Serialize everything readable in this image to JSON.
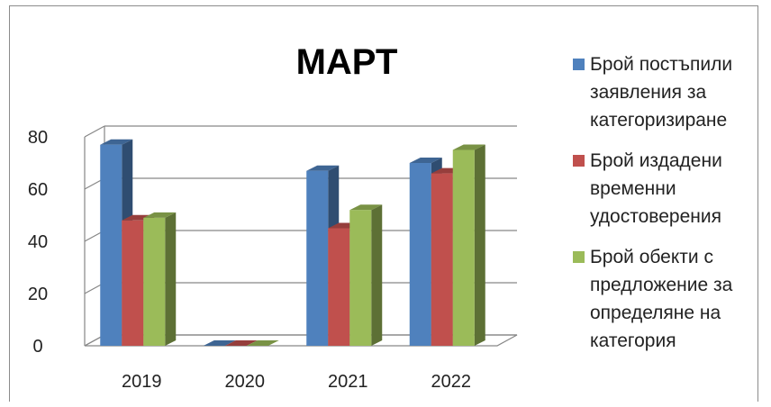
{
  "chart_data": {
    "type": "bar",
    "title": "МАРТ",
    "xlabel": "",
    "ylabel": "",
    "categories": [
      "2019",
      "2020",
      "2021",
      "2022"
    ],
    "yticks": [
      0,
      20,
      40,
      60,
      80
    ],
    "ylim": [
      0,
      80
    ],
    "grid": true,
    "legend_position": "right",
    "series": [
      {
        "name": "Брой постъпили заявления за категоризиране",
        "values": [
          77,
          0,
          67,
          70
        ],
        "color": "#4f81bd"
      },
      {
        "name": "Брой издадени временни удостоверения",
        "values": [
          48,
          0,
          45,
          66
        ],
        "color": "#c0504d"
      },
      {
        "name": "Брой обекти с предложение за определяне на категория",
        "values": [
          49,
          0,
          52,
          75
        ],
        "color": "#9bbb59"
      }
    ]
  }
}
